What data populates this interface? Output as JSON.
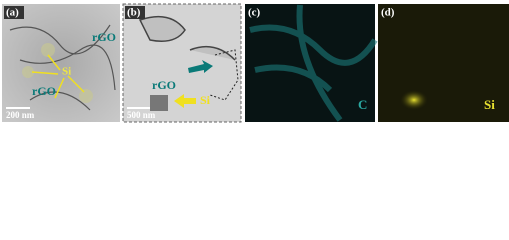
{
  "panels": [
    {
      "label": "(a)",
      "annotations": [
        "rGO",
        "Si",
        "rGO"
      ],
      "scale_bar": "200 nm"
    },
    {
      "label": "(b)",
      "annotations": [
        "rGO",
        "Si"
      ],
      "scale_bar": "500 nm"
    },
    {
      "label": "(c)",
      "element": "C"
    },
    {
      "label": "(d)",
      "element": "Si"
    }
  ]
}
